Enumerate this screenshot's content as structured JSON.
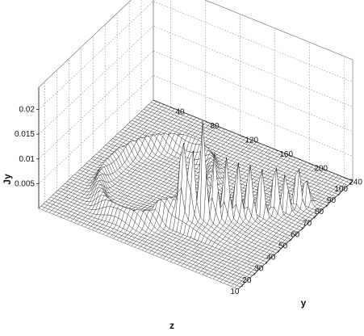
{
  "chart_data": {
    "type": "surface",
    "title": "",
    "xlabel": "z",
    "ylabel": "y",
    "zlabel": "Jy",
    "xlim": [
      5,
      100
    ],
    "ylim": [
      20,
      250
    ],
    "zlim": [
      0,
      0.0245
    ],
    "x_ticks": [
      "10",
      "20",
      "30",
      "40",
      "50",
      "60",
      "70",
      "80",
      "90",
      "100"
    ],
    "y_ticks": [
      "40",
      "80",
      "120",
      "160",
      "200",
      "240"
    ],
    "z_ticks": [
      "0.005",
      "0.01",
      "0.015",
      "0.02"
    ],
    "grid": true,
    "surface_color": "#ffffff",
    "mesh_color": "#111111",
    "peaks": [
      {
        "z": 30,
        "y": 150,
        "value": 0.0235
      },
      {
        "z": 32,
        "y": 158,
        "value": 0.0225
      },
      {
        "z": 35,
        "y": 168,
        "value": 0.021
      },
      {
        "z": 38,
        "y": 176,
        "value": 0.018
      },
      {
        "z": 42,
        "y": 184,
        "value": 0.016
      },
      {
        "z": 46,
        "y": 192,
        "value": 0.014
      },
      {
        "z": 50,
        "y": 200,
        "value": 0.013
      },
      {
        "z": 55,
        "y": 208,
        "value": 0.012
      },
      {
        "z": 60,
        "y": 216,
        "value": 0.011
      },
      {
        "z": 65,
        "y": 222,
        "value": 0.01
      },
      {
        "z": 70,
        "y": 228,
        "value": 0.009
      },
      {
        "z": 75,
        "y": 232,
        "value": 0.008
      }
    ]
  }
}
